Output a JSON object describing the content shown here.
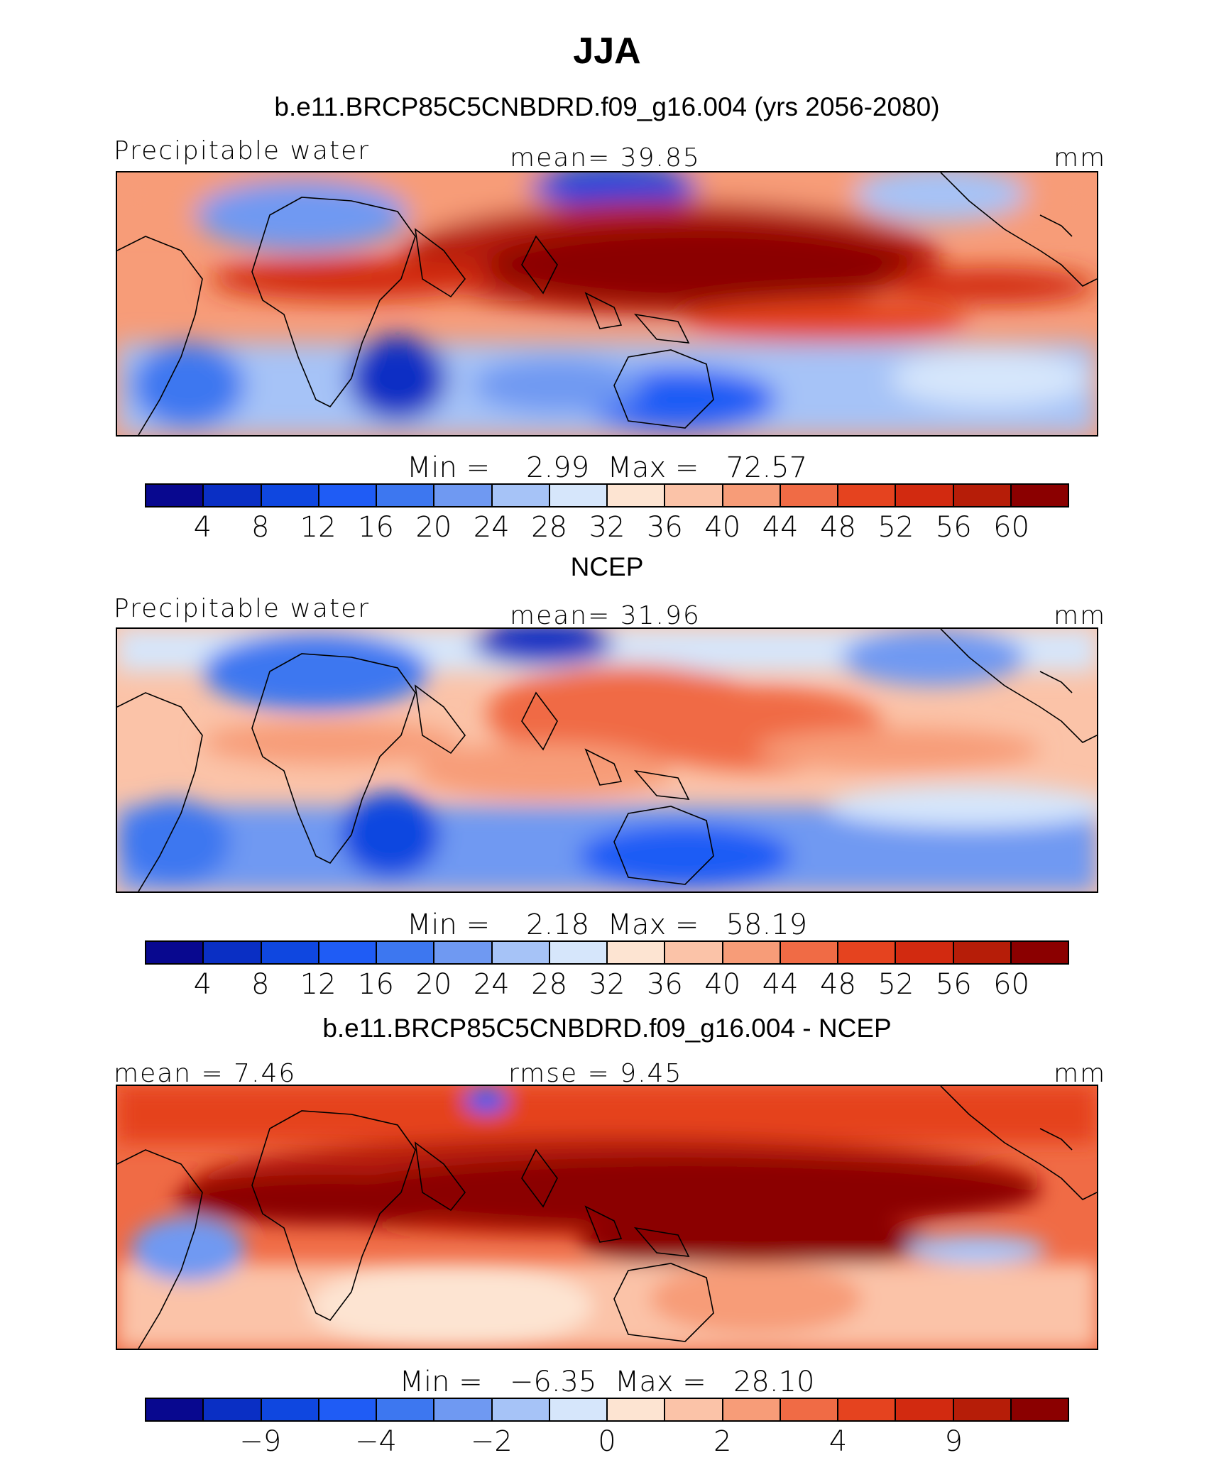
{
  "title": "JJA",
  "colors": [
    "#08088f",
    "#0a2fc4",
    "#0f47e0",
    "#1f5cf5",
    "#3d77f0",
    "#6f99f2",
    "#a6c3f7",
    "#d6e6fb",
    "#fde4d2",
    "#fbc3a8",
    "#f79c78",
    "#f06b45",
    "#e5431f",
    "#d22a10",
    "#b61d08",
    "#8b0000"
  ],
  "panel1": {
    "title": "b.e11.BRCP85C5CNBDRD.f09_g16.004 (yrs 2056-2080)",
    "variable": "Precipitable water",
    "stat": "mean=   39.85",
    "units": "mm",
    "minmax": "Min =    2.99  Max =   72.57",
    "ticks": [
      "4",
      "8",
      "12",
      "16",
      "20",
      "24",
      "28",
      "32",
      "36",
      "40",
      "44",
      "48",
      "52",
      "56",
      "60"
    ]
  },
  "panel2": {
    "title": "NCEP",
    "variable": "Precipitable water",
    "stat": "mean=   31.96",
    "units": "mm",
    "minmax": "Min =    2.18  Max =   58.19",
    "ticks": [
      "4",
      "8",
      "12",
      "16",
      "20",
      "24",
      "28",
      "32",
      "36",
      "40",
      "44",
      "48",
      "52",
      "56",
      "60"
    ]
  },
  "panel3": {
    "title": "b.e11.BRCP85C5CNBDRD.f09_g16.004 - NCEP",
    "stat_left": "mean =    7.46",
    "stat": "rmse =    9.45",
    "units": "mm",
    "minmax": "Min =   −6.35  Max =   28.10",
    "ticks": [
      "−9",
      "−4",
      "−2",
      "0",
      "2",
      "4",
      "9"
    ]
  }
}
